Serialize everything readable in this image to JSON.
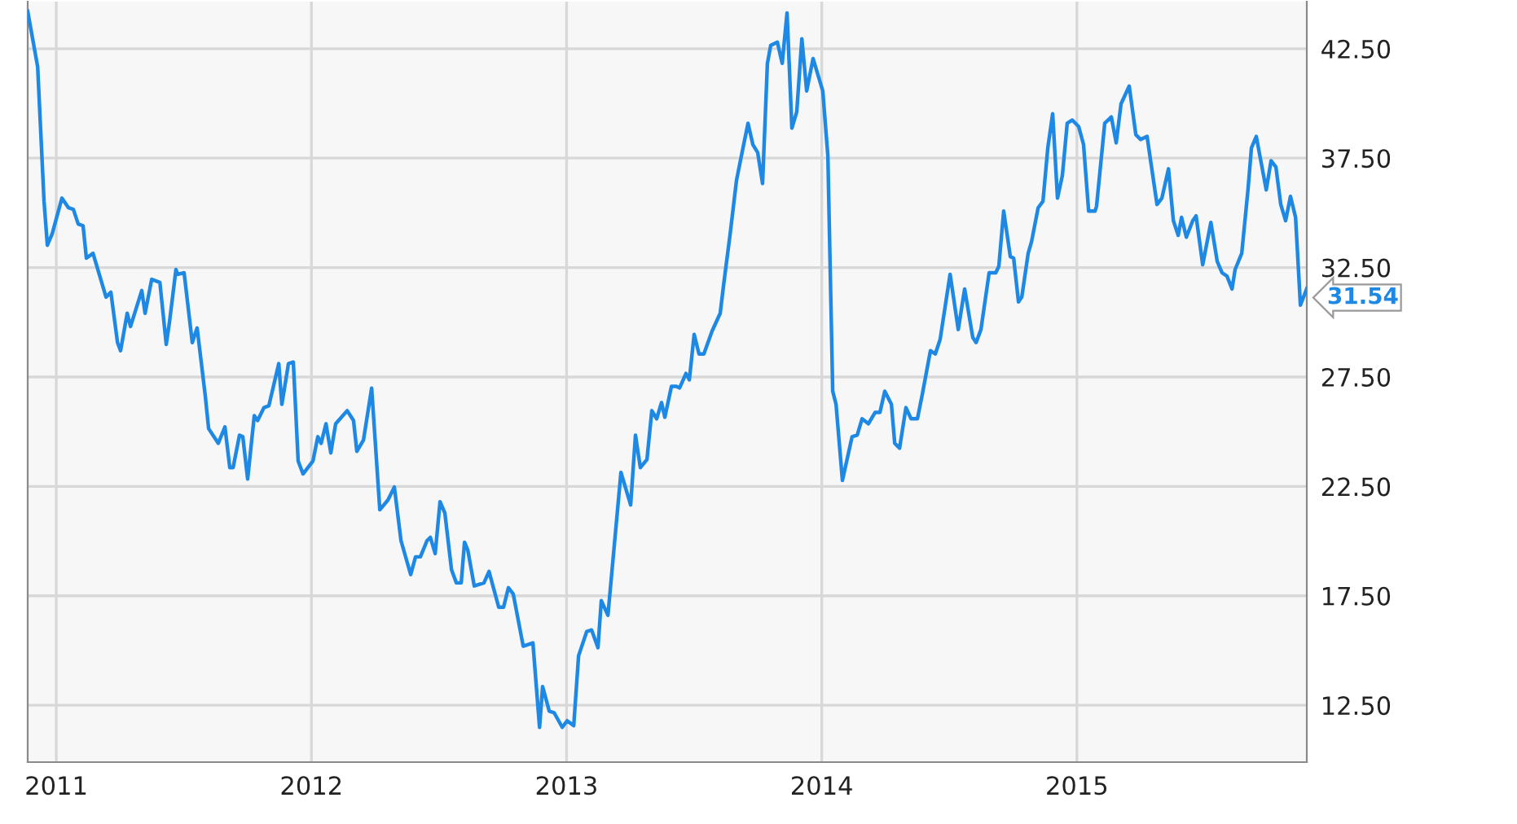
{
  "chart_data": {
    "type": "line",
    "x": [
      2010.888,
      2010.927,
      2010.952,
      2010.965,
      2010.984,
      2011.022,
      2011.048,
      2011.067,
      2011.086,
      2011.105,
      2011.118,
      2011.144,
      2011.195,
      2011.214,
      2011.24,
      2011.252,
      2011.278,
      2011.291,
      2011.335,
      2011.348,
      2011.374,
      2011.406,
      2011.431,
      2011.444,
      2011.469,
      2011.476,
      2011.501,
      2011.533,
      2011.552,
      2011.584,
      2011.597,
      2011.635,
      2011.661,
      2011.68,
      2011.693,
      2011.718,
      2011.731,
      2011.75,
      2011.776,
      2011.789,
      2011.814,
      2011.833,
      2011.872,
      2011.884,
      2011.91,
      2011.929,
      2011.948,
      2011.967,
      2012.006,
      2012.025,
      2012.038,
      2012.057,
      2012.076,
      2012.095,
      2012.14,
      2012.165,
      2012.178,
      2012.204,
      2012.236,
      2012.268,
      2012.3,
      2012.325,
      2012.351,
      2012.389,
      2012.408,
      2012.427,
      2012.453,
      2012.466,
      2012.485,
      2012.504,
      2012.523,
      2012.549,
      2012.568,
      2012.587,
      2012.6,
      2012.613,
      2012.638,
      2012.676,
      2012.696,
      2012.734,
      2012.753,
      2012.772,
      2012.791,
      2012.83,
      2012.868,
      2012.894,
      2012.906,
      2012.932,
      2012.951,
      2012.983,
      2013.002,
      2013.028,
      2013.047,
      2013.079,
      2013.098,
      2013.123,
      2013.136,
      2013.162,
      2013.213,
      2013.251,
      2013.27,
      2013.289,
      2013.315,
      2013.334,
      2013.353,
      2013.372,
      2013.385,
      2013.411,
      2013.43,
      2013.443,
      2013.468,
      2013.481,
      2013.5,
      2013.519,
      2013.538,
      2013.57,
      2013.602,
      2013.615,
      2013.641,
      2013.666,
      2013.685,
      2013.711,
      2013.73,
      2013.749,
      2013.768,
      2013.787,
      2013.8,
      2013.826,
      2013.845,
      2013.864,
      2013.883,
      2013.902,
      2013.922,
      2013.941,
      2013.966,
      2013.985,
      2014.004,
      2014.024,
      2014.043,
      2014.056,
      2014.081,
      2014.119,
      2014.139,
      2014.158,
      2014.183,
      2014.209,
      2014.228,
      2014.247,
      2014.273,
      2014.286,
      2014.305,
      2014.33,
      2014.35,
      2014.375,
      2014.394,
      2014.426,
      2014.445,
      2014.464,
      2014.503,
      2014.535,
      2014.56,
      2014.592,
      2014.605,
      2014.624,
      2014.656,
      2014.682,
      2014.694,
      2014.713,
      2014.739,
      2014.752,
      2014.771,
      2014.784,
      2014.809,
      2014.822,
      2014.848,
      2014.867,
      2014.886,
      2014.905,
      2014.924,
      2014.943,
      2014.962,
      2014.982,
      2015.007,
      2015.026,
      2015.046,
      2015.071,
      2015.077,
      2015.109,
      2015.135,
      2015.154,
      2015.173,
      2015.205,
      2015.231,
      2015.25,
      2015.275,
      2015.314,
      2015.333,
      2015.359,
      2015.378,
      2015.397,
      2015.41,
      2015.429,
      2015.454,
      2015.467,
      2015.493,
      2015.525,
      2015.55,
      2015.569,
      2015.588,
      2015.608,
      2015.62,
      2015.646,
      2015.671,
      2015.684,
      2015.703,
      2015.742,
      2015.761,
      2015.78,
      2015.799,
      2015.818,
      2015.837,
      2015.857,
      2015.876,
      2015.901
    ],
    "series": [
      {
        "color": "#1e88e5",
        "values": [
          44.21,
          41.68,
          35.53,
          33.52,
          34.04,
          35.67,
          35.23,
          35.16,
          34.49,
          34.41,
          32.93,
          33.15,
          31.15,
          31.37,
          29.07,
          28.7,
          30.41,
          29.81,
          31.45,
          30.41,
          31.96,
          31.82,
          28.99,
          30.04,
          32.41,
          32.19,
          32.26,
          29.07,
          29.74,
          26.63,
          25.14,
          24.47,
          25.22,
          23.36,
          23.36,
          24.84,
          24.77,
          22.84,
          25.73,
          25.51,
          26.1,
          26.18,
          28.11,
          26.25,
          28.11,
          28.18,
          23.66,
          23.07,
          23.66,
          24.77,
          24.47,
          25.36,
          24.03,
          25.36,
          25.96,
          25.51,
          24.1,
          24.62,
          26.99,
          21.43,
          21.88,
          22.47,
          20.02,
          18.47,
          19.28,
          19.28,
          20.02,
          20.17,
          19.43,
          21.8,
          21.28,
          18.69,
          18.09,
          18.09,
          19.95,
          19.58,
          17.95,
          18.09,
          18.61,
          16.98,
          16.98,
          17.87,
          17.58,
          15.2,
          15.35,
          11.49,
          13.35,
          12.23,
          12.16,
          11.49,
          11.79,
          11.57,
          14.76,
          15.87,
          15.94,
          15.13,
          17.28,
          16.61,
          23.14,
          21.65,
          24.84,
          23.36,
          23.73,
          25.96,
          25.59,
          26.33,
          25.66,
          27.07,
          27.07,
          27.0,
          27.66,
          27.37,
          29.44,
          28.55,
          28.55,
          29.59,
          30.41,
          31.67,
          34.04,
          36.49,
          37.6,
          39.09,
          38.12,
          37.75,
          36.34,
          41.83,
          42.65,
          42.8,
          41.83,
          44.13,
          38.87,
          39.61,
          42.95,
          40.57,
          42.05,
          41.31,
          40.57,
          37.6,
          26.85,
          26.25,
          22.77,
          24.77,
          24.84,
          25.59,
          25.36,
          25.88,
          25.88,
          26.85,
          26.25,
          24.47,
          24.25,
          26.1,
          25.59,
          25.59,
          26.7,
          28.7,
          28.55,
          29.22,
          32.19,
          29.67,
          31.52,
          29.3,
          29.07,
          29.67,
          32.26,
          32.26,
          32.56,
          35.08,
          33.0,
          32.93,
          30.93,
          31.15,
          33.15,
          33.67,
          35.23,
          35.53,
          37.97,
          39.53,
          35.67,
          36.71,
          39.09,
          39.24,
          38.94,
          38.12,
          35.08,
          35.08,
          35.3,
          39.09,
          39.38,
          38.2,
          39.98,
          40.79,
          38.57,
          38.35,
          38.49,
          35.38,
          35.67,
          37.01,
          34.64,
          33.97,
          34.79,
          33.89,
          34.64,
          34.86,
          32.63,
          34.56,
          32.78,
          32.26,
          32.11,
          31.52,
          32.41,
          33.15,
          36.12,
          37.97,
          38.49,
          36.05,
          37.38,
          37.09,
          35.38,
          34.64,
          35.75,
          34.79,
          30.78,
          31.54
        ]
      }
    ],
    "xlim": [
      2010.888,
      2015.901
    ],
    "xticks": [
      2011,
      2012,
      2013,
      2014,
      2015
    ],
    "ylim": [
      9.9,
      44.65
    ],
    "yticks": [
      {
        "value": 12.5,
        "label": "12.50"
      },
      {
        "value": 17.5,
        "label": "17.50"
      },
      {
        "value": 22.5,
        "label": "22.50"
      },
      {
        "value": 27.5,
        "label": "27.50"
      },
      {
        "value": 32.5,
        "label": "32.50"
      },
      {
        "value": 37.5,
        "label": "37.50"
      },
      {
        "value": 42.5,
        "label": "42.50"
      }
    ],
    "grid": true,
    "marker": "none",
    "line_style": "solid",
    "annotations": [
      {
        "text": "31.54",
        "x": 2015.901,
        "y": 31.54
      }
    ]
  }
}
